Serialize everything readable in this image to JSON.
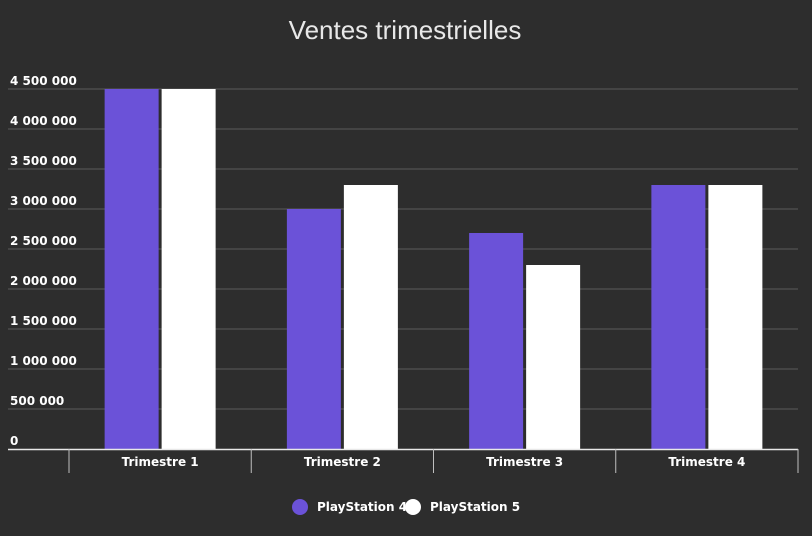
{
  "chart_data": {
    "type": "bar",
    "title": "Ventes trimestrielles",
    "xlabel": "",
    "ylabel": "",
    "categories": [
      "Trimestre 1",
      "Trimestre 2",
      "Trimestre 3",
      "Trimestre 4"
    ],
    "series": [
      {
        "name": "PlayStation 4",
        "color": "#6b52d8",
        "values": [
          4500000,
          3000000,
          2700000,
          3300000
        ]
      },
      {
        "name": "PlayStation 5",
        "color": "#ffffff",
        "values": [
          4500000,
          3300000,
          2300000,
          3300000
        ]
      }
    ],
    "ylim": [
      0,
      4500000
    ],
    "yticks": [
      0,
      500000,
      1000000,
      1500000,
      2000000,
      2500000,
      3000000,
      3500000,
      4000000,
      4500000
    ],
    "ytick_labels": [
      "0",
      "500 000",
      "1 000 000",
      "1 500 000",
      "2 000 000",
      "2 500 000",
      "3 000 000",
      "3 500 000",
      "4 000 000",
      "4 500 000"
    ],
    "grid": true,
    "legend": "bottom",
    "background": "#2d2d2d",
    "gridline_color": "#5a5a5a"
  }
}
